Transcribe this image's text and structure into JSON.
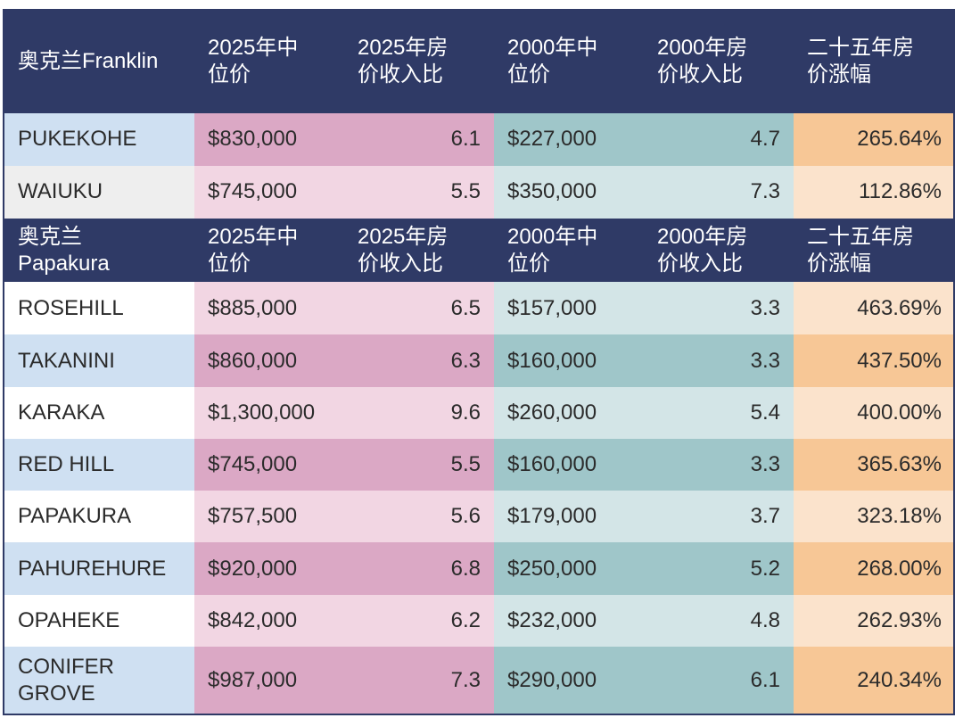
{
  "franklin": {
    "header": [
      "奥克兰Franklin",
      "2025年中\n位价",
      "2025年房\n价收入比",
      "2000年中\n位价",
      "2000年房\n价收入比",
      "二十五年房\n价涨幅"
    ],
    "rows": [
      [
        "PUKEKOHE",
        "$830,000",
        "6.1",
        "$227,000",
        "4.7",
        "265.64%"
      ],
      [
        "WAIUKU",
        "$745,000",
        "5.5",
        "$350,000",
        "7.3",
        "112.86%"
      ]
    ]
  },
  "papakura": {
    "header": [
      "奥克兰\nPapakura",
      "2025年中\n位价",
      "2025年房\n价收入比",
      "2000年中\n位价",
      "2000年房\n价收入比",
      "二十五年房\n价涨幅"
    ],
    "rows": [
      [
        "ROSEHILL",
        "$885,000",
        "6.5",
        "$157,000",
        "3.3",
        "463.69%"
      ],
      [
        "TAKANINI",
        "$860,000",
        "6.3",
        "$160,000",
        "3.3",
        "437.50%"
      ],
      [
        "KARAKA",
        "$1,300,000",
        "9.6",
        "$260,000",
        "5.4",
        "400.00%"
      ],
      [
        "RED HILL",
        "$745,000",
        "5.5",
        "$160,000",
        "3.3",
        "365.63%"
      ],
      [
        "PAPAKURA",
        "$757,500",
        "5.6",
        "$179,000",
        "3.7",
        "323.18%"
      ],
      [
        "PAHUREHURE",
        "$920,000",
        "6.8",
        "$250,000",
        "5.2",
        "268.00%"
      ],
      [
        "OPAHEKE",
        "$842,000",
        "6.2",
        "$232,000",
        "4.8",
        "262.93%"
      ],
      [
        "CONIFER\nGROVE",
        "$987,000",
        "7.3",
        "$290,000",
        "6.1",
        "240.34%"
      ]
    ]
  }
}
